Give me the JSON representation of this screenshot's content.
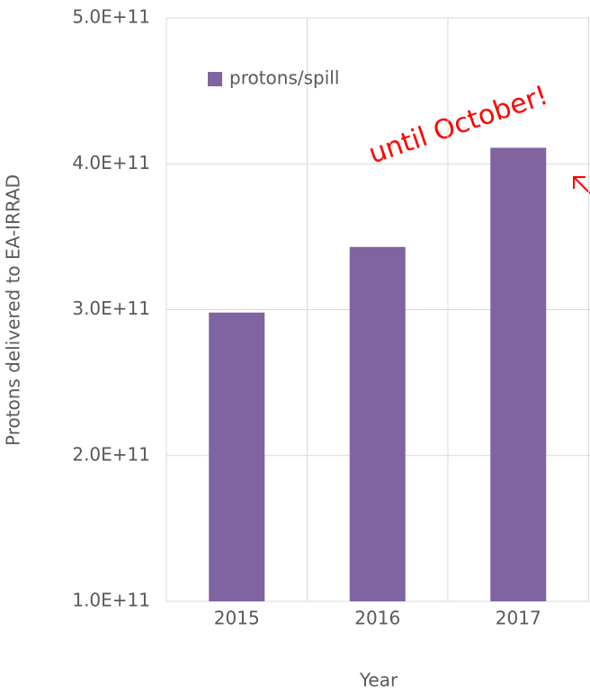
{
  "chart_data": {
    "type": "bar",
    "annotation": "until October!",
    "x_label": "Year",
    "y_label": "Protons delivered to EA-IRRAD",
    "categories": [
      "2015",
      "2016",
      "2017"
    ],
    "series": [
      {
        "name": "protons/spill",
        "color": "#8064a2",
        "values": [
          298000000000,
          343000000000,
          411000000000
        ]
      }
    ],
    "ylim": [
      100000000000,
      500000000000
    ],
    "yticks": [
      {
        "value": 100000000000,
        "label": "1.0E+11"
      },
      {
        "value": 200000000000,
        "label": "2.0E+11"
      },
      {
        "value": 300000000000,
        "label": "3.0E+11"
      },
      {
        "value": 400000000000,
        "label": "4.0E+11"
      },
      {
        "value": 500000000000,
        "label": "5.0E+11"
      }
    ],
    "grid": true
  }
}
